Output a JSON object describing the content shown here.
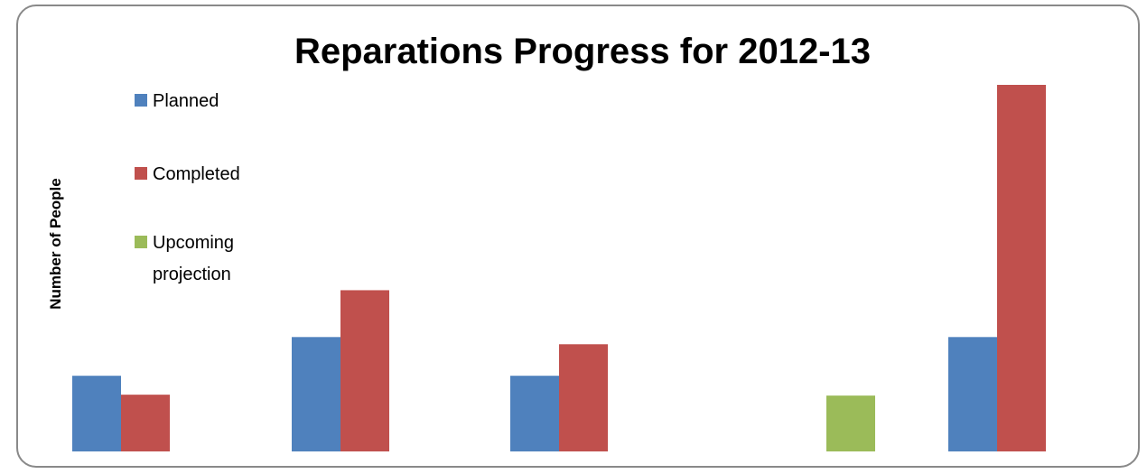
{
  "chart_data": {
    "type": "bar",
    "title": "Reparations Progress for 2012-13",
    "xlabel": "",
    "ylabel": "Number of People",
    "categories": [
      "",
      "",
      "",
      "",
      ""
    ],
    "series": [
      {
        "name": "Planned",
        "color": "#4f81bd",
        "values": [
          84,
          127,
          84,
          0,
          127
        ]
      },
      {
        "name": "Completed",
        "color": "#c0504d",
        "values": [
          63,
          179,
          119,
          0,
          407
        ]
      },
      {
        "name": "Upcoming projection",
        "color": "#9bbb59",
        "values": [
          0,
          0,
          0,
          62,
          0
        ]
      }
    ],
    "ylim": [
      0,
      410
    ],
    "grid": false,
    "legend": {
      "position": "left",
      "entries": [
        {
          "lines": [
            "Planned"
          ],
          "color": "#4f81bd"
        },
        {
          "lines": [
            "Completed"
          ],
          "color": "#c0504d"
        },
        {
          "lines": [
            "Upcoming",
            "projection"
          ],
          "color": "#9bbb59"
        }
      ]
    }
  }
}
